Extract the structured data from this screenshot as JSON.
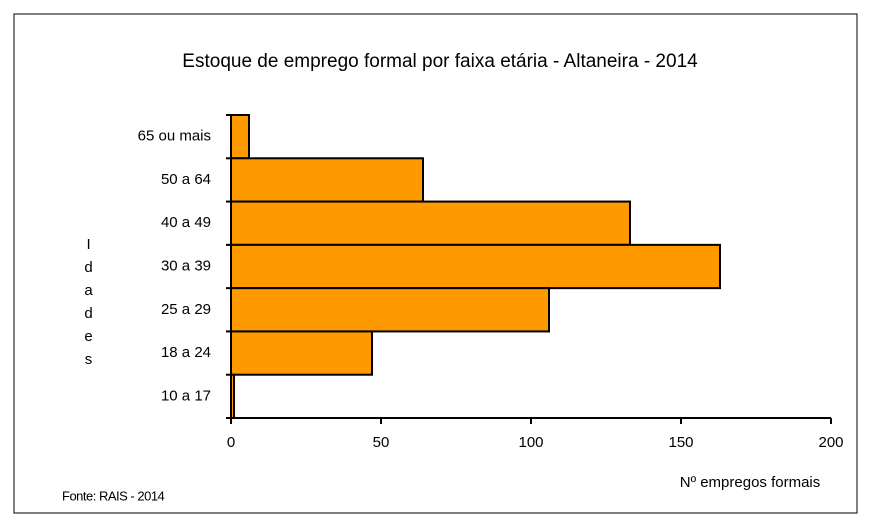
{
  "chart_data": {
    "type": "hbar",
    "title": "Estoque de emprego formal por faixa etária - Altaneira - 2014",
    "x_label": "Nº empregos formais",
    "y_label": "Idades",
    "source": "Fonte: RAIS - 2014",
    "categories": [
      "65 ou mais",
      "50 a 64",
      "40 a 49",
      "30 a 39",
      "25 a 29",
      "18 a 24",
      "10 a 17"
    ],
    "values": [
      6,
      64,
      133,
      163,
      106,
      47,
      1
    ],
    "color": "#ff9900",
    "xlim": [
      0,
      200
    ],
    "xticks": [
      0,
      50,
      100,
      150,
      200
    ]
  }
}
